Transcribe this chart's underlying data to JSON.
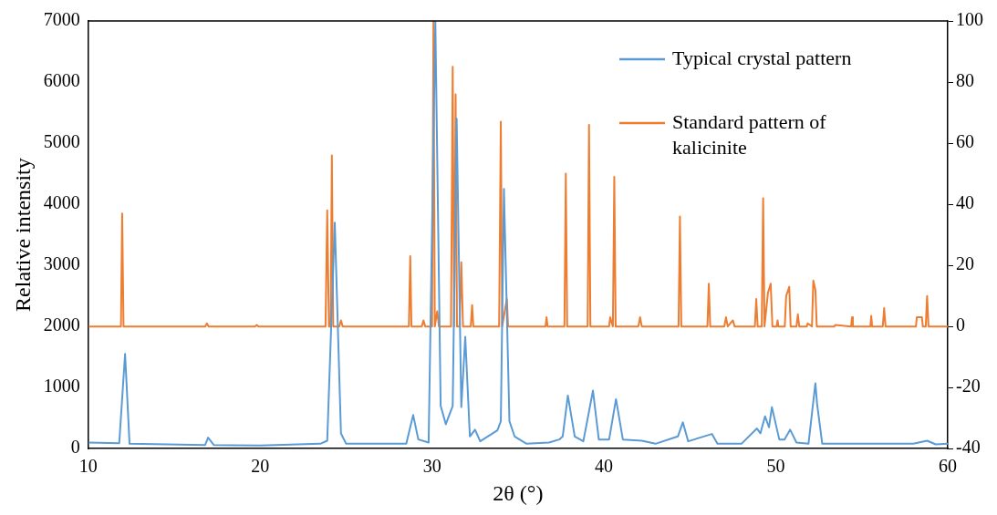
{
  "chart_data": {
    "type": "line",
    "xlabel": "2θ (°)",
    "ylabel": "Relative intensity",
    "xlim": [
      10,
      60
    ],
    "xticks": [
      10,
      20,
      30,
      40,
      50,
      60
    ],
    "ylim": [
      0,
      7000
    ],
    "yticks": [
      0,
      1000,
      2000,
      3000,
      4000,
      5000,
      6000,
      7000
    ],
    "y2lim": [
      -40,
      100
    ],
    "y2ticks": [
      -40,
      -20,
      0,
      20,
      40,
      60,
      80,
      100
    ],
    "grid": false,
    "legend": "top right",
    "marker": "none",
    "line_style": "solid",
    "series": [
      {
        "name": "Typical crystal pattern",
        "color": "#5b9bd5",
        "x": [
          10,
          11.8,
          12.14,
          12.4,
          16.8,
          16.97,
          17.3,
          20,
          23.5,
          23.9,
          24.34,
          24.7,
          25,
          28.5,
          28.9,
          29.2,
          29.8,
          30.19,
          30.5,
          30.8,
          31.0,
          31.2,
          31.43,
          31.7,
          31.93,
          32.2,
          32.5,
          32.8,
          33.8,
          34.0,
          34.18,
          34.5,
          34.8,
          35.5,
          36.8,
          37.4,
          37.6,
          37.9,
          38.3,
          38.8,
          39.36,
          39.7,
          40.3,
          40.7,
          41.1,
          42.2,
          43,
          44.3,
          44.59,
          44.9,
          46.28,
          46.6,
          48,
          48.9,
          49.1,
          49.37,
          49.6,
          49.77,
          50.2,
          50.5,
          50.83,
          51.2,
          51.9,
          52.3,
          52.4,
          52.7,
          55.7,
          58,
          58.8,
          59.3,
          60
        ],
        "values": [
          100,
          90,
          1550,
          80,
          60,
          180,
          60,
          50,
          80,
          130,
          3700,
          250,
          80,
          80,
          550,
          150,
          100,
          7000,
          700,
          400,
          550,
          700,
          5400,
          680,
          1830,
          200,
          310,
          120,
          300,
          450,
          4250,
          450,
          200,
          80,
          100,
          150,
          200,
          870,
          200,
          120,
          950,
          150,
          150,
          810,
          150,
          130,
          80,
          200,
          430,
          120,
          240,
          80,
          80,
          330,
          250,
          530,
          350,
          680,
          150,
          150,
          310,
          100,
          80,
          1070,
          730,
          80,
          80,
          80,
          130,
          70,
          80
        ]
      },
      {
        "name": "Standard pattern of kalicinite",
        "color": "#ed7d31",
        "axis": "y2",
        "x": [
          10,
          11.9,
          11.97,
          12.05,
          16.8,
          16.9,
          17.0,
          19.7,
          19.8,
          19.9,
          23.8,
          23.9,
          24.0,
          24.1,
          24.17,
          24.25,
          24.6,
          24.7,
          24.8,
          28.65,
          28.73,
          28.8,
          29.4,
          29.5,
          29.6,
          30.0,
          30.08,
          30.16,
          30.3,
          30.4,
          31.1,
          31.2,
          31.28,
          31.37,
          31.45,
          31.6,
          31.7,
          31.8,
          32.25,
          32.33,
          32.4,
          33.9,
          34.0,
          34.08,
          34.35,
          34.42,
          36.6,
          36.66,
          36.72,
          37.7,
          37.78,
          37.86,
          39.05,
          39.13,
          39.21,
          40.3,
          40.36,
          40.52,
          40.6,
          40.68,
          42.0,
          42.1,
          42.2,
          44.34,
          44.42,
          44.5,
          46.02,
          46.1,
          46.18,
          47.0,
          47.1,
          47.2,
          47.5,
          47.6,
          48.78,
          48.86,
          48.94,
          49.18,
          49.26,
          49.34,
          49.54,
          49.7,
          49.8,
          50.05,
          50.1,
          50.15,
          50.52,
          50.6,
          50.78,
          50.86,
          51.2,
          51.28,
          51.36,
          51.8,
          51.85,
          52.1,
          52.18,
          52.3,
          52.38,
          53.4,
          53.45,
          54.38,
          54.43,
          54.48,
          55.5,
          55.55,
          55.6,
          56.22,
          56.3,
          56.38,
          58.15,
          58.2,
          58.5,
          58.55,
          58.72,
          58.8,
          58.88,
          60
        ],
        "values": [
          0,
          0,
          37,
          0,
          0,
          1,
          0,
          0,
          0.5,
          0,
          0,
          38,
          0,
          0,
          56,
          0,
          0,
          2,
          0,
          0,
          23,
          0,
          0,
          2,
          0,
          0,
          100,
          0,
          5,
          0,
          0,
          85,
          0,
          76,
          0,
          0,
          21,
          0,
          0,
          7,
          0,
          0,
          67,
          0,
          9,
          0,
          0,
          3,
          0,
          0,
          50,
          0,
          0,
          66,
          0,
          0,
          3,
          0,
          49,
          0,
          0,
          3,
          0,
          0,
          36,
          0,
          0,
          14,
          0,
          0,
          3,
          0,
          2,
          0,
          0,
          9,
          0,
          0,
          42,
          0,
          11,
          14,
          0,
          0,
          2,
          0,
          0,
          10,
          13,
          0,
          0,
          4,
          0,
          0,
          1,
          0,
          15,
          12,
          0,
          0,
          0.5,
          0,
          3,
          0,
          0,
          3.5,
          0,
          0,
          6,
          0,
          0,
          3,
          3,
          0,
          0,
          10,
          0,
          0
        ]
      }
    ]
  }
}
